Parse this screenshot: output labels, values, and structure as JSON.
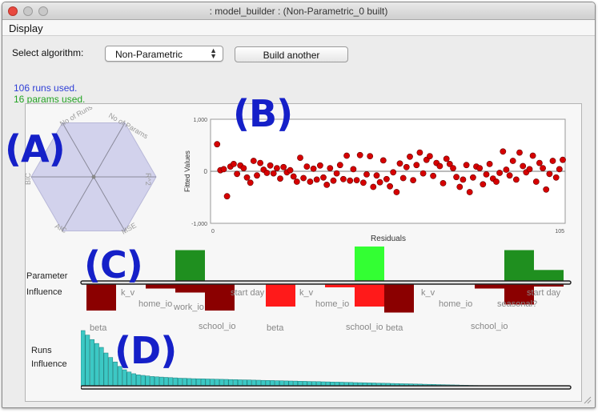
{
  "window": {
    "title": ": model_builder : (Non-Parametric_0  built)",
    "colors": {
      "close": "#e8493f",
      "chrome": "#ececec"
    }
  },
  "menu": {
    "items": [
      "Display"
    ]
  },
  "controls": {
    "select_label": "Select algorithm:",
    "algorithm_value": "Non-Parametric",
    "build_button": "Build another"
  },
  "status": {
    "runs_used": "106 runs used.",
    "params_used": "16 params used.",
    "runs_color": "#2f3fd6",
    "params_color": "#23a323"
  },
  "annotations": {
    "a": "(A)",
    "b": "(B)",
    "c": "(C)",
    "d": "(D)",
    "color": "#1520c8"
  },
  "radar": {
    "axes": [
      "No of Runs",
      "No of Params",
      "R^2",
      "MSE",
      "AIC",
      "BIC"
    ],
    "fill": "#d2d2ec"
  },
  "scatter": {
    "ylabel": "Fitted Values",
    "xlabel": "Residuals",
    "x_ticks": [
      "0",
      "105"
    ],
    "y_ticks": [
      "1,000",
      "0",
      "-1,000"
    ],
    "point_color": "#d60000"
  },
  "influence": {
    "label_line1": "Parameter",
    "label_line2": "Influence",
    "labels": [
      {
        "text": "beta"
      },
      {
        "text": "k_v"
      },
      {
        "text": "home_io"
      },
      {
        "text": "work_io"
      },
      {
        "text": "start day"
      },
      {
        "text": "school_io"
      },
      {
        "text": "beta"
      },
      {
        "text": "k_v"
      },
      {
        "text": "home_io"
      },
      {
        "text": "school_io"
      },
      {
        "text": "beta"
      },
      {
        "text": "k_v"
      },
      {
        "text": "home_io"
      },
      {
        "text": "seasonal?"
      },
      {
        "text": "start day"
      },
      {
        "text": "school_io"
      }
    ]
  },
  "runs": {
    "label_line1": "Runs",
    "label_line2": "Influence",
    "bar_color": "#3cc8c4"
  },
  "chart_data": [
    {
      "type": "scatter",
      "title": "",
      "xlabel": "Residuals",
      "ylabel": "Fitted Values",
      "xlim": [
        0,
        105
      ],
      "ylim": [
        -1000,
        1000
      ],
      "grid": false,
      "points": [
        [
          1,
          520
        ],
        [
          2,
          20
        ],
        [
          3,
          40
        ],
        [
          4,
          -480
        ],
        [
          5,
          90
        ],
        [
          6,
          140
        ],
        [
          7,
          -50
        ],
        [
          8,
          110
        ],
        [
          9,
          60
        ],
        [
          10,
          -120
        ],
        [
          11,
          -220
        ],
        [
          12,
          200
        ],
        [
          13,
          -80
        ],
        [
          14,
          160
        ],
        [
          15,
          30
        ],
        [
          16,
          -30
        ],
        [
          17,
          110
        ],
        [
          18,
          -40
        ],
        [
          19,
          60
        ],
        [
          20,
          -140
        ],
        [
          21,
          80
        ],
        [
          22,
          -20
        ],
        [
          23,
          20
        ],
        [
          24,
          -100
        ],
        [
          25,
          -200
        ],
        [
          26,
          260
        ],
        [
          27,
          -130
        ],
        [
          28,
          90
        ],
        [
          29,
          -200
        ],
        [
          30,
          50
        ],
        [
          31,
          -160
        ],
        [
          32,
          110
        ],
        [
          33,
          -120
        ],
        [
          34,
          -260
        ],
        [
          35,
          60
        ],
        [
          36,
          -180
        ],
        [
          37,
          -40
        ],
        [
          38,
          120
        ],
        [
          39,
          -150
        ],
        [
          40,
          300
        ],
        [
          41,
          -180
        ],
        [
          42,
          40
        ],
        [
          43,
          -170
        ],
        [
          44,
          310
        ],
        [
          45,
          -220
        ],
        [
          46,
          -60
        ],
        [
          47,
          290
        ],
        [
          48,
          -300
        ],
        [
          49,
          -80
        ],
        [
          50,
          -210
        ],
        [
          51,
          210
        ],
        [
          52,
          -150
        ],
        [
          53,
          -290
        ],
        [
          54,
          -20
        ],
        [
          55,
          -400
        ],
        [
          56,
          150
        ],
        [
          57,
          -130
        ],
        [
          58,
          80
        ],
        [
          59,
          280
        ],
        [
          60,
          -170
        ],
        [
          61,
          120
        ],
        [
          62,
          360
        ],
        [
          63,
          -40
        ],
        [
          64,
          220
        ],
        [
          65,
          290
        ],
        [
          66,
          -90
        ],
        [
          67,
          160
        ],
        [
          68,
          100
        ],
        [
          69,
          -230
        ],
        [
          70,
          240
        ],
        [
          71,
          140
        ],
        [
          72,
          60
        ],
        [
          73,
          -110
        ],
        [
          74,
          -300
        ],
        [
          75,
          -160
        ],
        [
          76,
          120
        ],
        [
          77,
          -400
        ],
        [
          78,
          -120
        ],
        [
          79,
          90
        ],
        [
          80,
          60
        ],
        [
          81,
          -250
        ],
        [
          82,
          -60
        ],
        [
          83,
          140
        ],
        [
          84,
          -140
        ],
        [
          85,
          -200
        ],
        [
          86,
          -30
        ],
        [
          87,
          380
        ],
        [
          88,
          30
        ],
        [
          89,
          -80
        ],
        [
          90,
          200
        ],
        [
          91,
          -160
        ],
        [
          92,
          360
        ],
        [
          93,
          100
        ],
        [
          94,
          -20
        ],
        [
          95,
          40
        ],
        [
          96,
          300
        ],
        [
          97,
          -200
        ],
        [
          98,
          160
        ],
        [
          99,
          60
        ],
        [
          100,
          -350
        ],
        [
          101,
          -50
        ],
        [
          102,
          200
        ],
        [
          103,
          -120
        ],
        [
          104,
          40
        ],
        [
          105,
          220
        ]
      ]
    },
    {
      "type": "bar",
      "title": "Parameter Influence",
      "groups": [
        {
          "name": "group-1",
          "bars": [
            {
              "label": "beta",
              "value": -0.7,
              "color": "#8b0000"
            },
            {
              "label": "k_v",
              "value": 0.02,
              "color": "#8b0000"
            },
            {
              "label": "home_io",
              "value": -0.15,
              "color": "#8b0000"
            },
            {
              "label": "work_io",
              "value": 0.9,
              "color": "#1f8f1f"
            },
            {
              "label": "work_io",
              "value": -0.25,
              "color": "#8b0000"
            },
            {
              "label": "start day",
              "value": -0.7,
              "color": "#8b0000"
            }
          ]
        },
        {
          "name": "group-2",
          "bars": [
            {
              "label": "beta",
              "value": -0.6,
              "color": "#ff1a1a"
            },
            {
              "label": "k_v",
              "value": 0.02,
              "color": "#8b0000"
            },
            {
              "label": "home_io",
              "value": -0.12,
              "color": "#ff1a1a"
            },
            {
              "label": "school_io",
              "value": 1.0,
              "color": "#33ff33"
            },
            {
              "label": "school_io",
              "value": -0.6,
              "color": "#ff1a1a"
            },
            {
              "label": "beta",
              "value": -0.75,
              "color": "#8b0000"
            }
          ]
        },
        {
          "name": "group-3",
          "bars": [
            {
              "label": "k_v",
              "value": 0.02,
              "color": "#8b0000"
            },
            {
              "label": "home_io",
              "value": -0.15,
              "color": "#8b0000"
            },
            {
              "label": "school_io",
              "value": 0.9,
              "color": "#1f8f1f"
            },
            {
              "label": "school_io",
              "value": -0.55,
              "color": "#8b0000"
            },
            {
              "label": "seasonal?",
              "value": 0.35,
              "color": "#1f8f1f"
            },
            {
              "label": "seasonal?",
              "value": -0.1,
              "color": "#8b0000"
            }
          ]
        }
      ]
    },
    {
      "type": "bar",
      "title": "Runs Influence",
      "values": [
        1.0,
        0.92,
        0.84,
        0.77,
        0.7,
        0.6,
        0.52,
        0.44,
        0.36,
        0.3,
        0.26,
        0.23,
        0.21,
        0.2,
        0.19,
        0.18,
        0.175,
        0.17,
        0.165,
        0.16,
        0.155,
        0.15,
        0.148,
        0.145,
        0.142,
        0.14,
        0.138,
        0.136,
        0.134,
        0.132,
        0.13,
        0.128,
        0.126,
        0.124,
        0.122,
        0.12,
        0.118,
        0.116,
        0.114,
        0.112,
        0.11,
        0.108,
        0.106,
        0.104,
        0.102,
        0.1,
        0.098,
        0.096,
        0.094,
        0.092,
        0.09,
        0.088,
        0.086,
        0.084,
        0.082,
        0.08,
        0.078,
        0.076,
        0.074,
        0.072,
        0.07,
        0.068,
        0.066,
        0.064,
        0.062,
        0.06,
        0.058,
        0.056,
        0.054,
        0.052,
        0.05,
        0.048,
        0.046,
        0.044,
        0.042,
        0.04,
        0.038,
        0.036,
        0.034,
        0.032,
        0.03,
        0.028,
        0.026,
        0.024,
        0.022,
        0.02,
        0.018,
        0.016,
        0.015,
        0.014,
        0.013,
        0.012,
        0.011,
        0.01,
        0.009,
        0.008,
        0.007,
        0.006,
        0.005,
        0.005,
        0.004,
        0.004,
        0.003,
        0.003,
        0.002,
        0.002
      ]
    }
  ]
}
